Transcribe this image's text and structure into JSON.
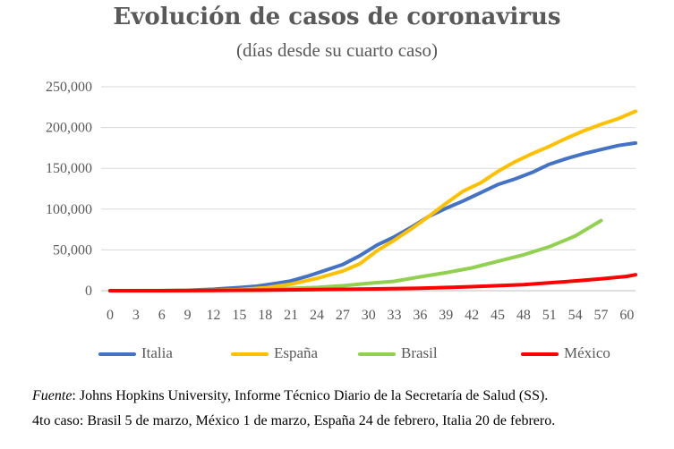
{
  "notes": {
    "source_label": "Fuente",
    "source_text": ": Johns Hopkins University, Informe Técnico Diario de la Secretaría de Salud (SS).",
    "case_line": "4to caso: Brasil 5 de marzo, México 1 de marzo, España 24 de febrero, Italia 20 de febrero."
  },
  "chart_data": {
    "type": "line",
    "title": "Evolución de casos de coronavirus",
    "subtitle": "(días desde su cuarto caso)",
    "xlabel": "",
    "ylabel": "",
    "x_range": [
      0,
      61
    ],
    "x_ticks": [
      0,
      3,
      6,
      9,
      12,
      15,
      18,
      21,
      24,
      27,
      30,
      33,
      36,
      39,
      42,
      45,
      48,
      51,
      54,
      57,
      60
    ],
    "y_range": [
      0,
      250000
    ],
    "y_ticks": [
      0,
      50000,
      100000,
      150000,
      200000,
      250000
    ],
    "y_tick_labels": [
      "0",
      "50,000",
      "100,000",
      "150,000",
      "200,000",
      "250,000"
    ],
    "grid": "horizontal",
    "legend_position": "bottom",
    "series": [
      {
        "name": "Italia",
        "color": "#4472C4",
        "x": [
          0,
          3,
          6,
          9,
          12,
          15,
          17,
          19,
          21,
          23,
          25,
          27,
          29,
          31,
          33,
          35,
          37,
          39,
          41,
          43,
          45,
          47,
          49,
          51,
          53,
          55,
          57,
          59,
          61
        ],
        "y": [
          0,
          0,
          0,
          500,
          1700,
          3800,
          5500,
          8500,
          12000,
          18000,
          25000,
          32000,
          43000,
          56000,
          66000,
          78000,
          91000,
          101000,
          110000,
          120000,
          130000,
          137000,
          145000,
          155000,
          162000,
          168000,
          173000,
          178000,
          181000
        ]
      },
      {
        "name": "España",
        "color": "#FFC000",
        "x": [
          0,
          6,
          12,
          15,
          18,
          21,
          24,
          27,
          29,
          31,
          33,
          35,
          37,
          39,
          41,
          43,
          45,
          47,
          49,
          51,
          53,
          55,
          57,
          59,
          61
        ],
        "y": [
          0,
          0,
          500,
          1200,
          3500,
          8000,
          15000,
          24000,
          33000,
          49000,
          62000,
          76000,
          91000,
          107000,
          122000,
          132000,
          146000,
          158000,
          168000,
          177000,
          187000,
          196000,
          204000,
          211000,
          220000
        ]
      },
      {
        "name": "Brasil",
        "color": "#92D050",
        "x": [
          0,
          6,
          12,
          15,
          18,
          21,
          24,
          27,
          30,
          33,
          36,
          39,
          42,
          45,
          48,
          51,
          54,
          57
        ],
        "y": [
          0,
          100,
          400,
          900,
          1800,
          2900,
          3900,
          6000,
          9000,
          11500,
          17000,
          22000,
          28000,
          36000,
          44000,
          54000,
          67000,
          86000
        ]
      },
      {
        "name": "México",
        "color": "#FF0000",
        "x": [
          0,
          6,
          12,
          18,
          24,
          30,
          36,
          42,
          48,
          54,
          57,
          60,
          61
        ],
        "y": [
          0,
          50,
          300,
          700,
          1300,
          2100,
          3000,
          4900,
          7500,
          12000,
          14500,
          17500,
          19500
        ]
      }
    ]
  }
}
